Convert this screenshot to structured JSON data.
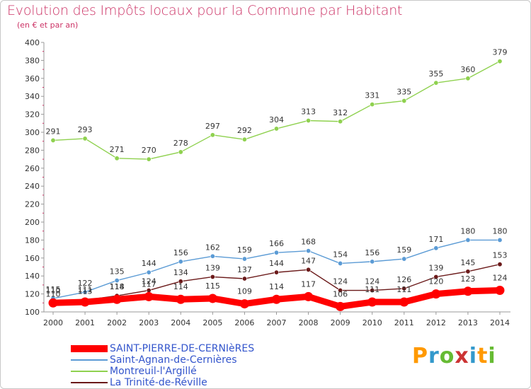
{
  "header": {
    "title": "Evolution des Impôts locaux pour la Commune par Habitant",
    "subtitle": "(en € et par an)"
  },
  "brand": {
    "letters": [
      "P",
      "r",
      "o",
      "x",
      "i",
      "t",
      "i"
    ],
    "colors": [
      "#ff9900",
      "#3399cc",
      "#66bb33",
      "#cc3333",
      "#3399cc",
      "#ff9900",
      "#66bb33"
    ]
  },
  "chart_data": {
    "type": "line",
    "x": [
      2000,
      2001,
      2002,
      2003,
      2004,
      2005,
      2006,
      2007,
      2008,
      2009,
      2010,
      2011,
      2012,
      2013,
      2014
    ],
    "ylim": [
      100,
      400
    ],
    "yticks": [
      100,
      120,
      140,
      160,
      180,
      200,
      220,
      240,
      260,
      280,
      300,
      320,
      340,
      360,
      380,
      400
    ],
    "grid": false,
    "legend_position": "bottom-left",
    "series": [
      {
        "name": "SAINT-PIERRE-DE-CERNIèRES",
        "color": "#ff0000",
        "values": [
          110,
          111,
          114,
          117,
          114,
          115,
          109,
          114,
          117,
          106,
          111,
          111,
          120,
          123,
          124
        ],
        "labels": [
          "110",
          "111",
          "114",
          "117",
          "114",
          "115",
          "109",
          "114",
          "117",
          "106",
          "111",
          "111",
          "120",
          "123",
          "124"
        ]
      },
      {
        "name": "Saint-Agnan-de-Cernières",
        "color": "#5b9bd5",
        "values": [
          115,
          122,
          135,
          144,
          156,
          162,
          159,
          166,
          168,
          154,
          156,
          159,
          171,
          180,
          180
        ],
        "labels": [
          "115",
          "122",
          "135",
          "144",
          "156",
          "162",
          "159",
          "166",
          "168",
          "154",
          "156",
          "159",
          "171",
          "180",
          "180"
        ]
      },
      {
        "name": "Montreuil-l'Argillé",
        "color": "#8fd14f",
        "values": [
          291,
          293,
          271,
          270,
          278,
          297,
          292,
          304,
          313,
          312,
          331,
          335,
          355,
          360,
          379
        ],
        "labels": [
          "291",
          "293",
          "271",
          "270",
          "278",
          "297",
          "292",
          "304",
          "313",
          "312",
          "331",
          "335",
          "355",
          "360",
          "379"
        ]
      },
      {
        "name": "La Trinité-de-Réville",
        "color": "#6b1a1a",
        "values": [
          110,
          113,
          118,
          124,
          134,
          139,
          137,
          144,
          147,
          124,
          124,
          126,
          139,
          145,
          153
        ],
        "labels": [
          "110",
          "113",
          "118",
          "124",
          "134",
          "139",
          "137",
          "144",
          "147",
          "124",
          "124",
          "126",
          "139",
          "145",
          "153"
        ]
      }
    ]
  }
}
